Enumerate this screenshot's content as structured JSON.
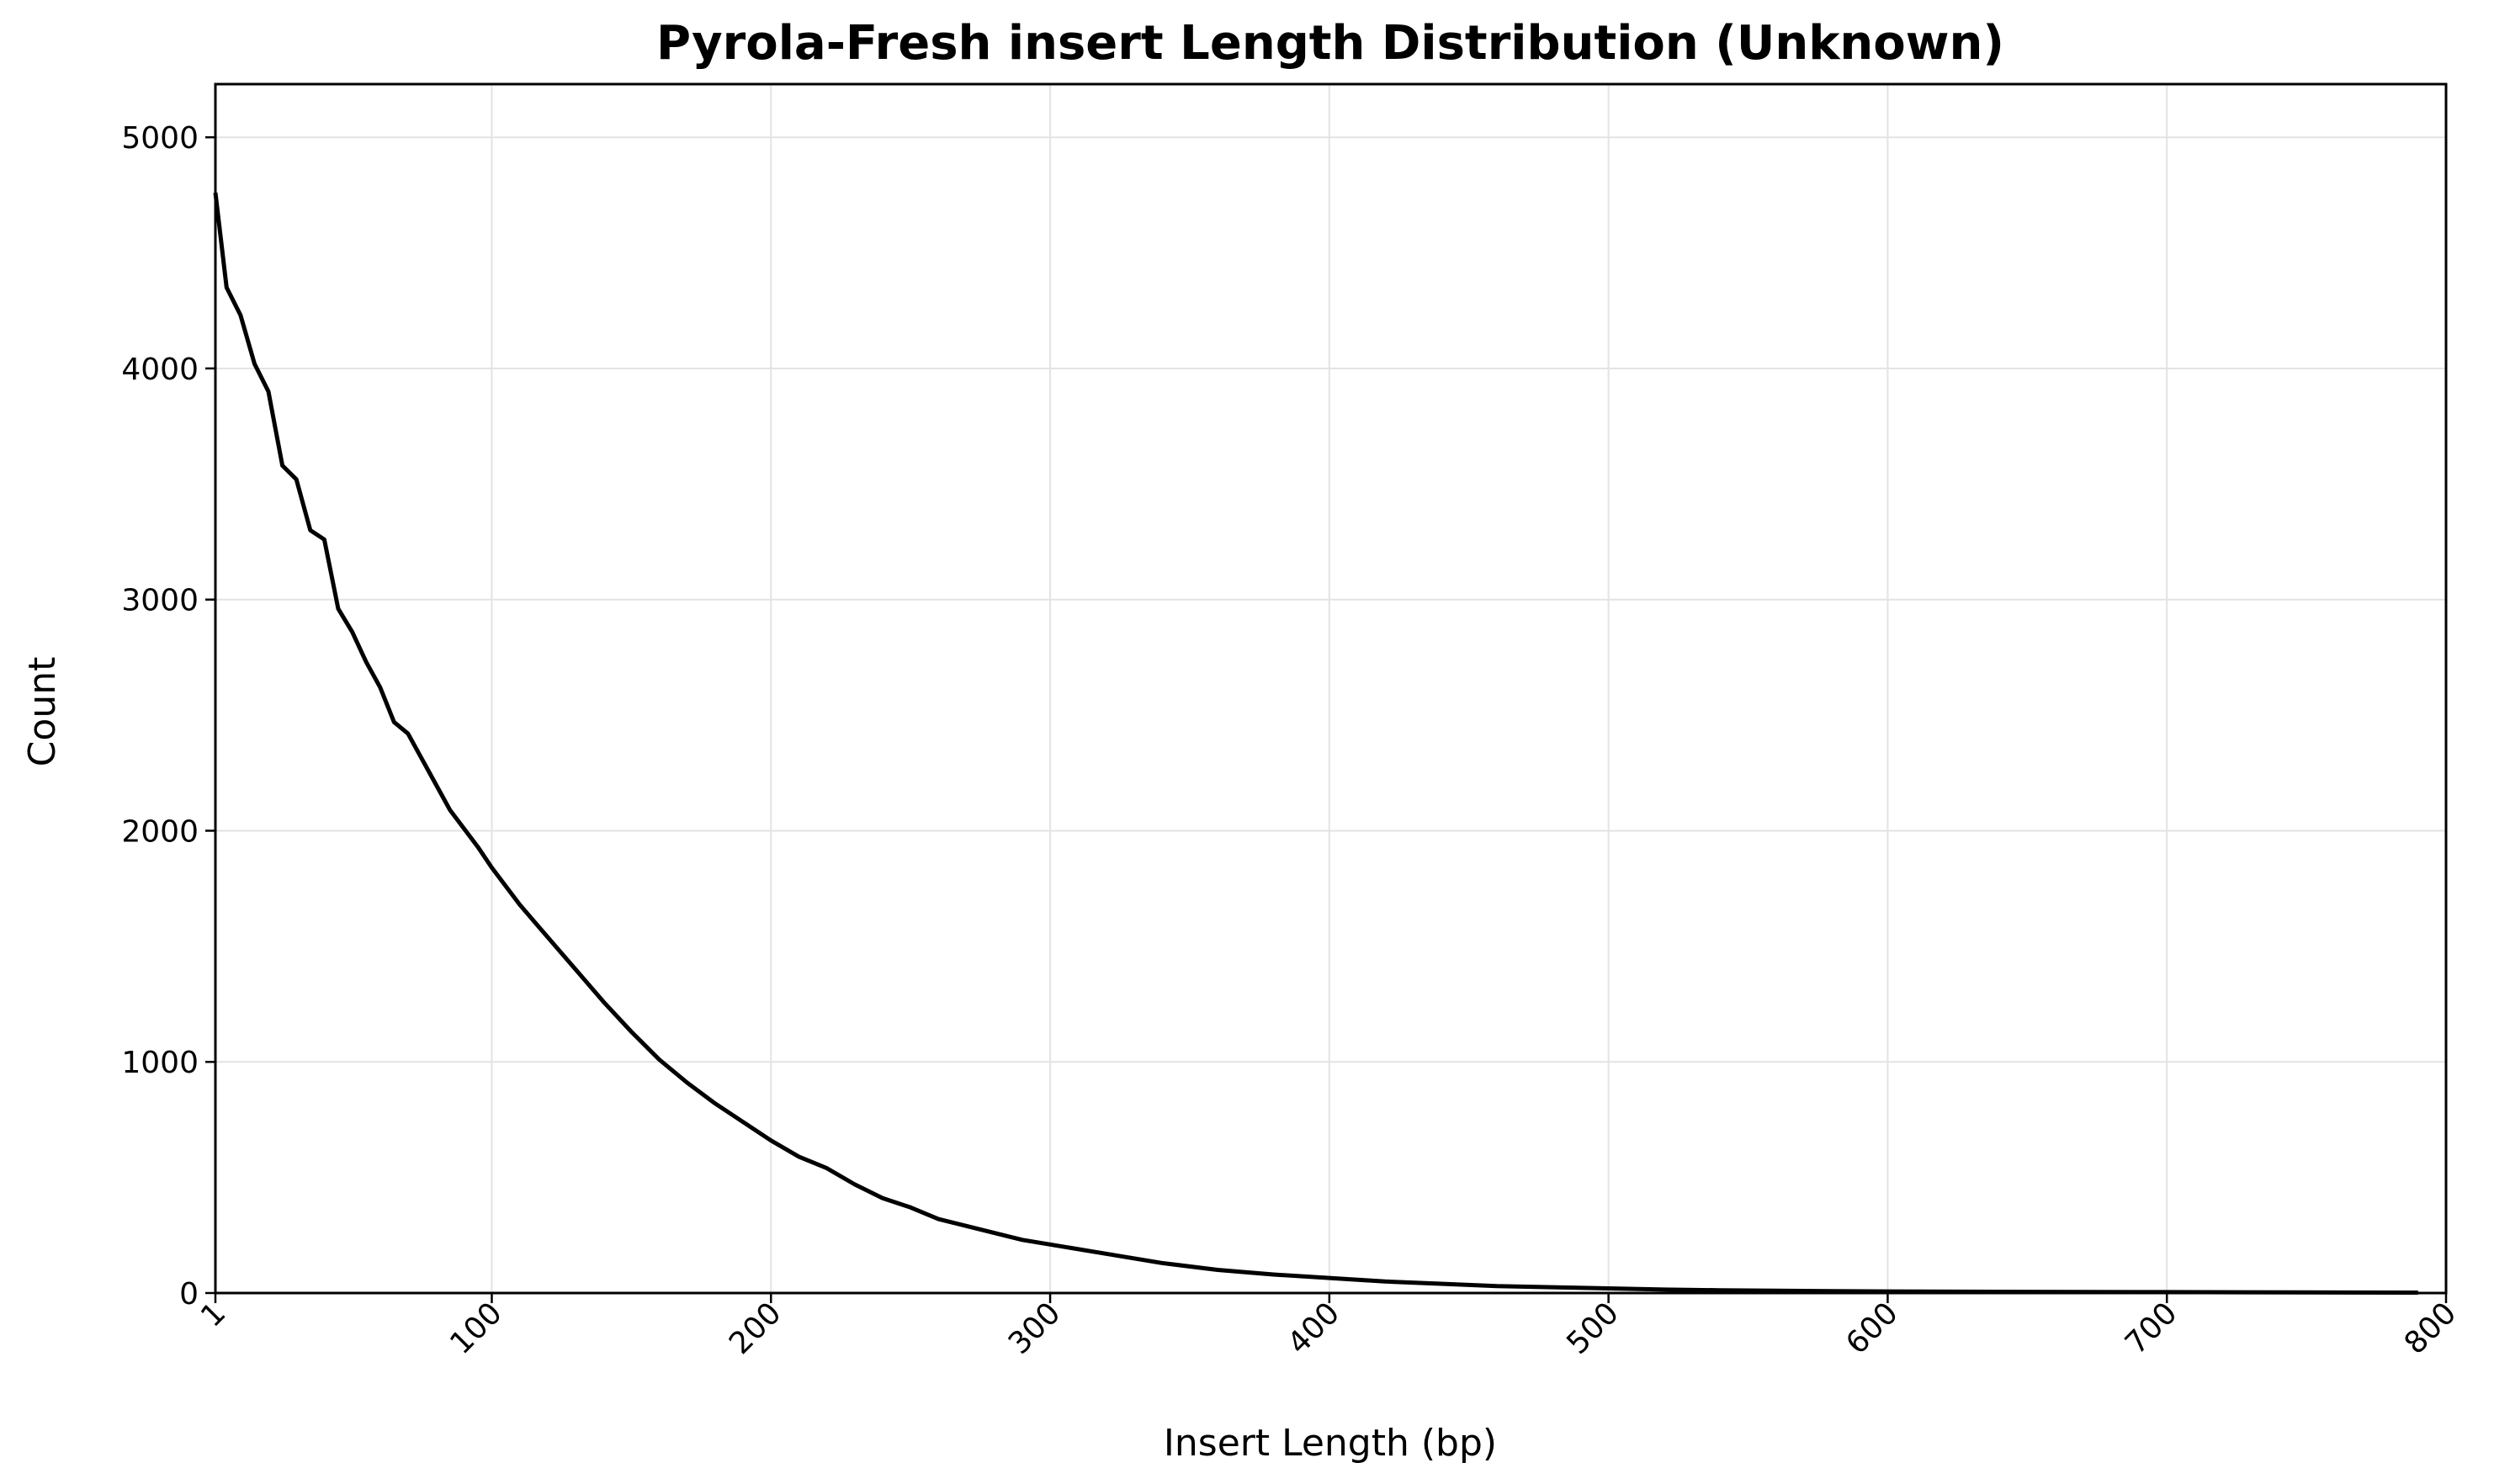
{
  "chart_data": {
    "type": "line",
    "title": "Pyrola-Fresh insert Length Distribution (Unknown)",
    "xlabel": "Insert Length (bp)",
    "ylabel": "Count",
    "xlim": [
      1,
      800
    ],
    "ylim": [
      0,
      5230
    ],
    "x_ticks": [
      1,
      100,
      200,
      300,
      400,
      500,
      600,
      700,
      800
    ],
    "x_tick_labels": [
      "1",
      "100",
      "200",
      "300",
      "400",
      "500",
      "600",
      "700",
      "800"
    ],
    "y_ticks": [
      0,
      1000,
      2000,
      3000,
      4000,
      5000
    ],
    "y_tick_labels": [
      "0",
      "1000",
      "2000",
      "3000",
      "4000",
      "5000"
    ],
    "grid": true,
    "line_color": "#000000",
    "series": [
      {
        "x": [
          1,
          5,
          10,
          15,
          20,
          25,
          30,
          35,
          40,
          45,
          50,
          55,
          60,
          65,
          70,
          75,
          80,
          85,
          90,
          95,
          100,
          110,
          120,
          130,
          140,
          150,
          160,
          170,
          180,
          190,
          200,
          210,
          220,
          230,
          240,
          250,
          260,
          270,
          280,
          290,
          300,
          320,
          340,
          360,
          380,
          400,
          420,
          440,
          460,
          480,
          500,
          520,
          540,
          560,
          580,
          600,
          650,
          700,
          750,
          790
        ],
        "y": [
          4760,
          4350,
          4230,
          4020,
          3900,
          3580,
          3520,
          3300,
          3260,
          2960,
          2860,
          2730,
          2620,
          2470,
          2420,
          2310,
          2200,
          2090,
          2010,
          1930,
          1840,
          1680,
          1540,
          1400,
          1260,
          1130,
          1010,
          910,
          820,
          740,
          660,
          590,
          540,
          470,
          410,
          370,
          320,
          290,
          260,
          230,
          210,
          170,
          130,
          100,
          80,
          65,
          50,
          40,
          30,
          25,
          20,
          15,
          12,
          10,
          8,
          7,
          5,
          4,
          3,
          2
        ]
      }
    ]
  }
}
